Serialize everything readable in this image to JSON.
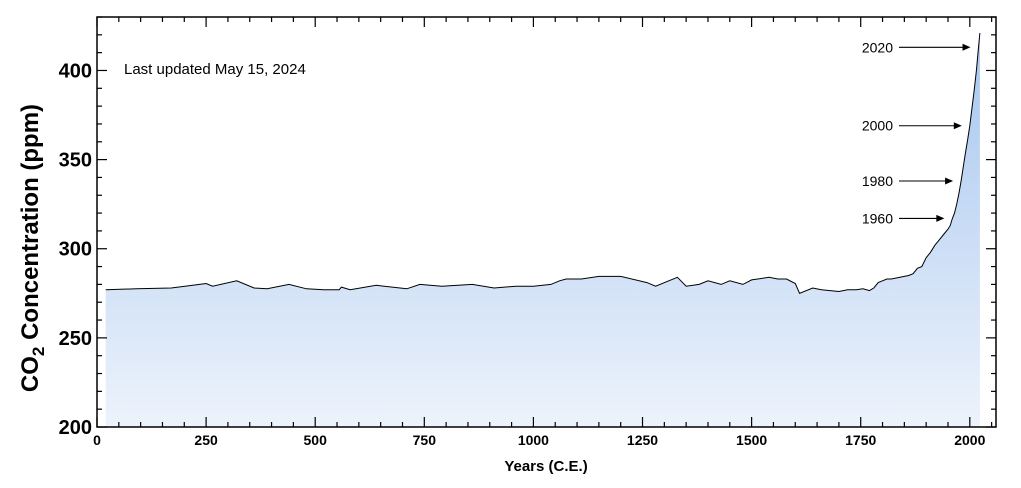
{
  "chart_data": {
    "type": "area",
    "xlabel": "Years (C.E.)",
    "ylabel_main": "CO",
    "ylabel_sub": "2",
    "ylabel_rest": " Concentration (ppm)",
    "note": "Last updated May 15, 2024",
    "xlim": [
      0,
      2060
    ],
    "ylim": [
      200,
      430
    ],
    "xticks": [
      0,
      250,
      500,
      750,
      1000,
      1250,
      1500,
      1750,
      2000
    ],
    "yticks": [
      200,
      250,
      300,
      350,
      400
    ],
    "x_minor_step": 50,
    "y_minor_step": 10,
    "fill_gradient": [
      "#a6c6ee",
      "#edf3fc"
    ],
    "line_color": "#000000",
    "series": [
      {
        "name": "CO2",
        "x": [
          20,
          90,
          170,
          235,
          250,
          265,
          320,
          360,
          390,
          440,
          480,
          520,
          555,
          560,
          580,
          640,
          710,
          740,
          790,
          860,
          910,
          960,
          1000,
          1040,
          1060,
          1075,
          1110,
          1150,
          1170,
          1200,
          1260,
          1280,
          1330,
          1350,
          1380,
          1400,
          1430,
          1450,
          1480,
          1500,
          1540,
          1560,
          1580,
          1600,
          1610,
          1640,
          1660,
          1680,
          1700,
          1710,
          1720,
          1740,
          1755,
          1770,
          1780,
          1790,
          1800,
          1810,
          1820,
          1840,
          1860,
          1870,
          1880,
          1890,
          1900,
          1910,
          1920,
          1930,
          1940,
          1950,
          1955,
          1960,
          1965,
          1970,
          1975,
          1980,
          1985,
          1990,
          1995,
          2000,
          2005,
          2010,
          2015,
          2020,
          2023
        ],
        "y": [
          277,
          277.5,
          278,
          280,
          280.5,
          279,
          282,
          278,
          277.5,
          280,
          277.5,
          277,
          277,
          278.5,
          277,
          279.5,
          277.5,
          280,
          279,
          280,
          278,
          279,
          279,
          280,
          282,
          283,
          283,
          284.5,
          284.5,
          284.5,
          281,
          279,
          284,
          279,
          280,
          282,
          280,
          282,
          280,
          282.5,
          284,
          283,
          283,
          280.5,
          275,
          278,
          277,
          276.5,
          276,
          276.5,
          277,
          277,
          277.5,
          276.5,
          278,
          281,
          282,
          283,
          283,
          284,
          285,
          286,
          289,
          290,
          295,
          298,
          302,
          305,
          308,
          311,
          313,
          317,
          320,
          325,
          331,
          338,
          346,
          354,
          361,
          369,
          379,
          389,
          400,
          413,
          421
        ]
      }
    ],
    "annotations": [
      {
        "label": "2020",
        "target_year": 2020
      },
      {
        "label": "2000",
        "target_year": 2000
      },
      {
        "label": "1980",
        "target_year": 1980
      },
      {
        "label": "1960",
        "target_year": 1960
      }
    ]
  }
}
